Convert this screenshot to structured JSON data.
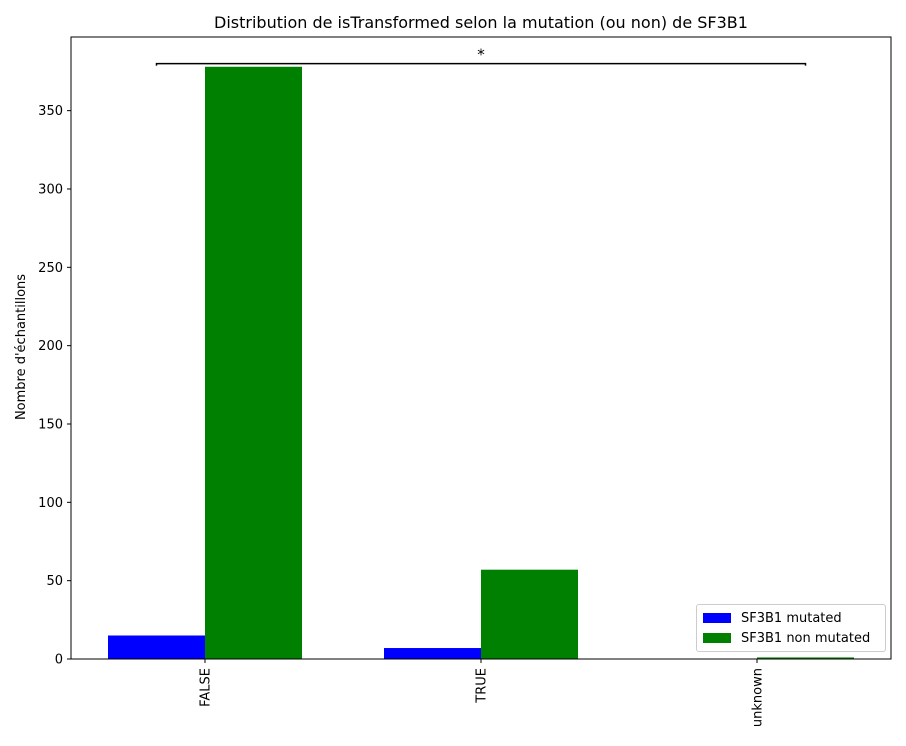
{
  "chart_data": {
    "type": "bar",
    "title": "Distribution de isTransformed selon la mutation (ou non) de SF3B1",
    "xlabel": "",
    "ylabel": "Nombre d'échantillons",
    "categories": [
      "FALSE",
      "TRUE",
      "unknown"
    ],
    "series": [
      {
        "name": "SF3B1 mutated",
        "color": "#0000ff",
        "values": [
          15,
          7,
          0
        ]
      },
      {
        "name": "SF3B1 non mutated",
        "color": "#008000",
        "values": [
          378,
          57,
          1
        ]
      }
    ],
    "ylim": [
      0,
      397
    ],
    "yticks": [
      0,
      50,
      100,
      150,
      200,
      250,
      300,
      350
    ],
    "grid": false,
    "legend_position": "lower right",
    "annotation": {
      "text": "*",
      "from_category": "FALSE",
      "to_category": "unknown",
      "level": 380
    }
  }
}
